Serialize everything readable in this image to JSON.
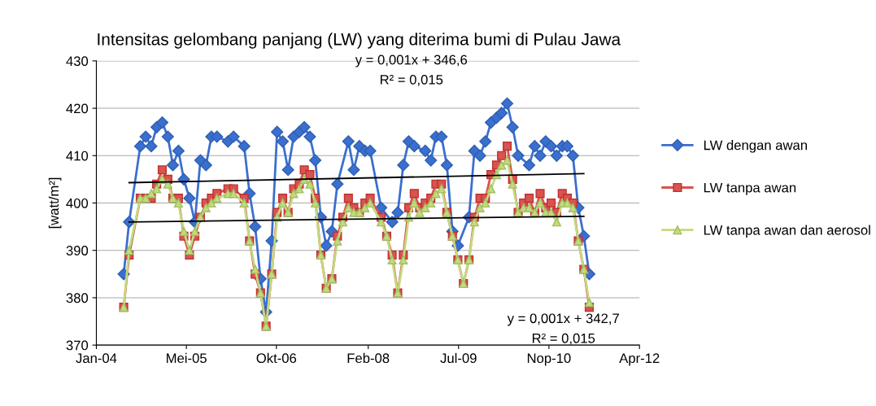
{
  "chart_data": {
    "type": "line",
    "title": "Intensitas gelombang panjang (LW) yang diterima bumi di Pulau Jawa",
    "ylabel": "[watt/m²]",
    "x": [
      "2004-06",
      "2004-07",
      "2004-09",
      "2004-10",
      "2004-11",
      "2004-12",
      "2005-01",
      "2005-02",
      "2005-03",
      "2005-04",
      "2005-05",
      "2005-06",
      "2005-07",
      "2005-08",
      "2005-09",
      "2005-10",
      "2005-11",
      "2006-01",
      "2006-02",
      "2006-04",
      "2006-05",
      "2006-06",
      "2006-07",
      "2006-08",
      "2006-09",
      "2006-10",
      "2006-11",
      "2006-12",
      "2007-01",
      "2007-02",
      "2007-03",
      "2007-04",
      "2007-05",
      "2007-06",
      "2007-07",
      "2007-08",
      "2007-09",
      "2007-10",
      "2007-11",
      "2007-12",
      "2008-01",
      "2008-02",
      "2008-03",
      "2008-05",
      "2008-06",
      "2008-07",
      "2008-08",
      "2008-09",
      "2008-10",
      "2008-11",
      "2008-12",
      "2009-01",
      "2009-02",
      "2009-03",
      "2009-04",
      "2009-05",
      "2009-06",
      "2009-07",
      "2009-08",
      "2009-09",
      "2009-10",
      "2009-11",
      "2009-12",
      "2010-01",
      "2010-02",
      "2010-03",
      "2010-04",
      "2010-05",
      "2010-06",
      "2010-07",
      "2010-08",
      "2010-09",
      "2010-10",
      "2010-11",
      "2010-12",
      "2011-01",
      "2011-02",
      "2011-03",
      "2011-04",
      "2011-05",
      "2011-06",
      "2011-07"
    ],
    "series": [
      {
        "name": "LW dengan awan",
        "color": "#3a6fd0",
        "marker": "diamond",
        "x": [
          "2004-06",
          "2004-07",
          "2004-09",
          "2004-10",
          "2004-11",
          "2004-12",
          "2005-01",
          "2005-02",
          "2005-03",
          "2005-04",
          "2005-05",
          "2005-06",
          "2005-07",
          "2005-08",
          "2005-09",
          "2005-10",
          "2005-11",
          "2006-01",
          "2006-02",
          "2006-04",
          "2006-05",
          "2006-06",
          "2006-07",
          "2006-08",
          "2006-09",
          "2006-10",
          "2006-11",
          "2006-12",
          "2007-01",
          "2007-02",
          "2007-03",
          "2007-04",
          "2007-05",
          "2007-06",
          "2007-07",
          "2007-08",
          "2007-09",
          "2007-11",
          "2007-12",
          "2008-01",
          "2008-02",
          "2008-03",
          "2008-05",
          "2008-07",
          "2008-08",
          "2008-09",
          "2008-10",
          "2008-11",
          "2009-01",
          "2009-02",
          "2009-03",
          "2009-04",
          "2009-05",
          "2009-06",
          "2009-07",
          "2009-09",
          "2009-10",
          "2009-11",
          "2009-12",
          "2010-01",
          "2010-02",
          "2010-03",
          "2010-04",
          "2010-05",
          "2010-06",
          "2010-08",
          "2010-09",
          "2010-10",
          "2010-11",
          "2010-12",
          "2011-01",
          "2011-02",
          "2011-03",
          "2011-04",
          "2011-05",
          "2011-06",
          "2011-07"
        ],
        "values": [
          385,
          396,
          412,
          414,
          412,
          416,
          417,
          414,
          408,
          411,
          405,
          401,
          396,
          409,
          408,
          414,
          414,
          413,
          414,
          412,
          402,
          395,
          384,
          377,
          392,
          415,
          413,
          407,
          414,
          415,
          416,
          414,
          409,
          397,
          391,
          394,
          404,
          413,
          407,
          412,
          411,
          411,
          399,
          396,
          398,
          408,
          413,
          412,
          411,
          409,
          414,
          414,
          408,
          394,
          391,
          397,
          411,
          410,
          413,
          417,
          418,
          419,
          421,
          416,
          410,
          408,
          412,
          410,
          413,
          412,
          410,
          412,
          412,
          410,
          399,
          393,
          385
        ]
      },
      {
        "name": "LW tanpa awan",
        "color": "#d9534f",
        "marker": "square",
        "values": [
          378,
          389,
          401,
          401,
          401,
          404,
          407,
          405,
          401,
          401,
          393,
          389,
          393,
          397,
          400,
          401,
          402,
          403,
          403,
          401,
          392,
          385,
          381,
          374,
          385,
          398,
          401,
          398,
          403,
          404,
          407,
          406,
          401,
          389,
          382,
          384,
          393,
          397,
          401,
          399,
          398,
          400,
          401,
          397,
          393,
          389,
          381,
          389,
          399,
          402,
          399,
          400,
          401,
          404,
          404,
          398,
          393,
          388,
          383,
          388,
          397,
          401,
          401,
          406,
          408,
          410,
          412,
          405,
          398,
          400,
          401,
          398,
          402,
          399,
          400,
          398,
          402,
          401,
          400,
          392,
          386,
          378
        ]
      },
      {
        "name": "LW tanpa awan dan aerosol",
        "color": "#c3da7e",
        "marker": "triangle",
        "values": [
          378,
          390,
          401,
          401,
          402,
          403,
          405,
          404,
          401,
          400,
          394,
          390,
          394,
          397,
          399,
          400,
          401,
          402,
          402,
          400,
          392,
          386,
          381,
          374,
          385,
          397,
          400,
          398,
          402,
          403,
          405,
          404,
          400,
          389,
          382,
          384,
          392,
          396,
          399,
          398,
          398,
          399,
          400,
          396,
          393,
          388,
          381,
          388,
          397,
          400,
          398,
          399,
          400,
          402,
          403,
          398,
          393,
          388,
          383,
          388,
          396,
          399,
          400,
          403,
          406,
          408,
          409,
          404,
          398,
          399,
          399,
          398,
          400,
          398,
          398,
          396,
          400,
          400,
          399,
          392,
          386,
          379
        ]
      },
      {
        "type": "line",
        "color": "#000000",
        "marker": "none",
        "x": [
          "2004-07",
          "2011-06"
        ],
        "values": [
          404.3,
          406.2
        ]
      },
      {
        "type": "line",
        "color": "#000000",
        "marker": "none",
        "x": [
          "2004-07",
          "2011-06"
        ],
        "values": [
          396.0,
          397.2
        ]
      }
    ],
    "annotations": [
      "y = 0,001x + 346,6",
      "R² = 0,015",
      "y = 0,001x + 342,7",
      "R² = 0,015"
    ],
    "xlim": [
      "2004-01-01",
      "2012-04-05"
    ],
    "xticks": [
      {
        "value": "2004-01-01",
        "label": "Jan-04"
      },
      {
        "value": "2005-05-15",
        "label": "Mei-05"
      },
      {
        "value": "2006-09-27",
        "label": "Okt-06"
      },
      {
        "value": "2008-02-19",
        "label": "Feb-08"
      },
      {
        "value": "2009-07-05",
        "label": "Jul-09"
      },
      {
        "value": "2010-11-19",
        "label": "Nop-10"
      },
      {
        "value": "2012-04-05",
        "label": "Apr-12"
      }
    ],
    "ylim": [
      370,
      430
    ],
    "yticks": [
      370,
      380,
      390,
      400,
      410,
      420,
      430
    ],
    "grid": "y",
    "legend": "right"
  }
}
